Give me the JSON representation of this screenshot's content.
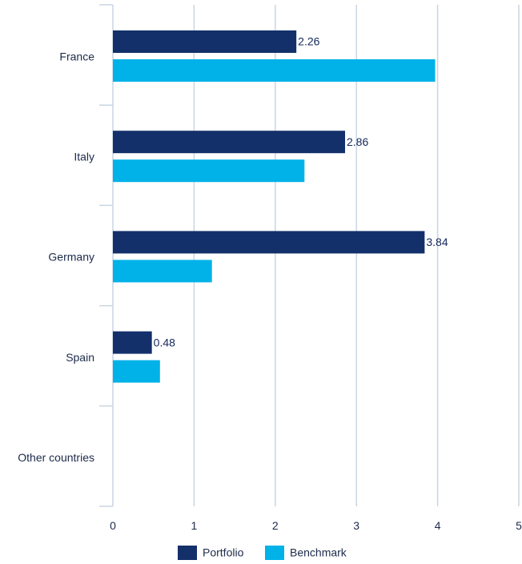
{
  "chart_data": {
    "type": "bar",
    "orientation": "horizontal",
    "title": "",
    "xlabel": "",
    "ylabel": "",
    "categories": [
      "France",
      "Italy",
      "Germany",
      "Spain",
      "Other countries"
    ],
    "series": [
      {
        "name": "Portfolio",
        "color": "#13306b",
        "values": [
          2.26,
          2.86,
          3.84,
          0.48,
          0
        ],
        "data_labels": [
          "2.26",
          "2.86",
          "3.84",
          "0.48",
          ""
        ]
      },
      {
        "name": "Benchmark",
        "color": "#00b2e8",
        "values": [
          3.97,
          2.36,
          1.22,
          0.58,
          0
        ],
        "data_labels": [
          "",
          "",
          "",
          "",
          ""
        ]
      }
    ],
    "xlim": [
      0,
      5
    ],
    "x_ticks": [
      "0",
      "1",
      "2",
      "3",
      "4",
      "5"
    ],
    "grid": "vertical",
    "legend": "bottom-center"
  }
}
